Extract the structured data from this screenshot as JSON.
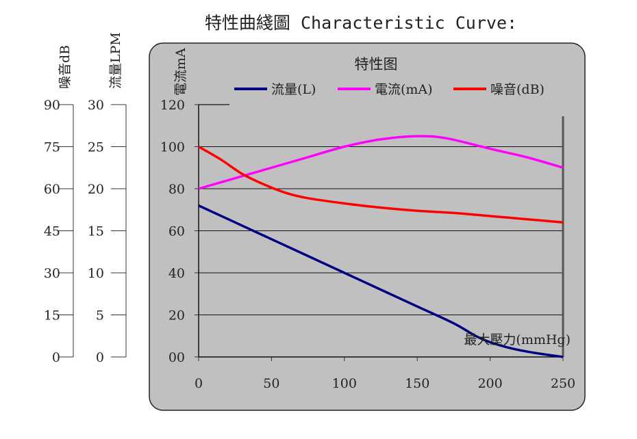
{
  "page_title": "特性曲綫圖 Characteristic Curve:",
  "chart_data": {
    "type": "line",
    "title": "特性图",
    "xlabel": "最大壓力(mmHg)",
    "x_ticks": [
      0,
      50,
      100,
      150,
      200,
      250
    ],
    "xlim": [
      0,
      250
    ],
    "ylabel": "電流mA",
    "ylim": [
      0,
      120
    ],
    "y_ticks": [
      "00",
      "20",
      "40",
      "60",
      "80",
      "100",
      "120"
    ],
    "grid": true,
    "legend_position": "top",
    "left_axes": [
      {
        "label": "噪音dB",
        "ticks": [
          "0",
          "15",
          "30",
          "45",
          "60",
          "75",
          "90"
        ]
      },
      {
        "label": "流量LPM",
        "ticks": [
          "0",
          "5",
          "10",
          "15",
          "20",
          "25",
          "30"
        ]
      }
    ],
    "series": [
      {
        "name": "流量(L)",
        "color": "#000080",
        "points": [
          [
            0,
            72
          ],
          [
            25,
            64
          ],
          [
            50,
            56
          ],
          [
            75,
            48
          ],
          [
            100,
            40
          ],
          [
            125,
            32
          ],
          [
            150,
            24
          ],
          [
            175,
            16
          ],
          [
            190,
            10
          ],
          [
            200,
            7
          ],
          [
            215,
            4
          ],
          [
            230,
            2
          ],
          [
            250,
            0
          ]
        ]
      },
      {
        "name": "電流(mA)",
        "color": "#ff00ff",
        "points": [
          [
            0,
            80
          ],
          [
            25,
            85
          ],
          [
            50,
            90
          ],
          [
            75,
            95
          ],
          [
            100,
            100
          ],
          [
            125,
            103.5
          ],
          [
            150,
            105
          ],
          [
            170,
            104
          ],
          [
            200,
            99
          ],
          [
            225,
            95
          ],
          [
            250,
            90
          ]
        ]
      },
      {
        "name": "噪音(dB)",
        "color": "#ff0000",
        "points": [
          [
            0,
            100
          ],
          [
            15,
            94
          ],
          [
            30,
            87
          ],
          [
            45,
            82
          ],
          [
            60,
            78
          ],
          [
            75,
            75.5
          ],
          [
            100,
            73
          ],
          [
            125,
            71
          ],
          [
            150,
            69.5
          ],
          [
            175,
            68.5
          ],
          [
            200,
            67
          ],
          [
            225,
            65.5
          ],
          [
            250,
            64
          ]
        ]
      }
    ]
  }
}
